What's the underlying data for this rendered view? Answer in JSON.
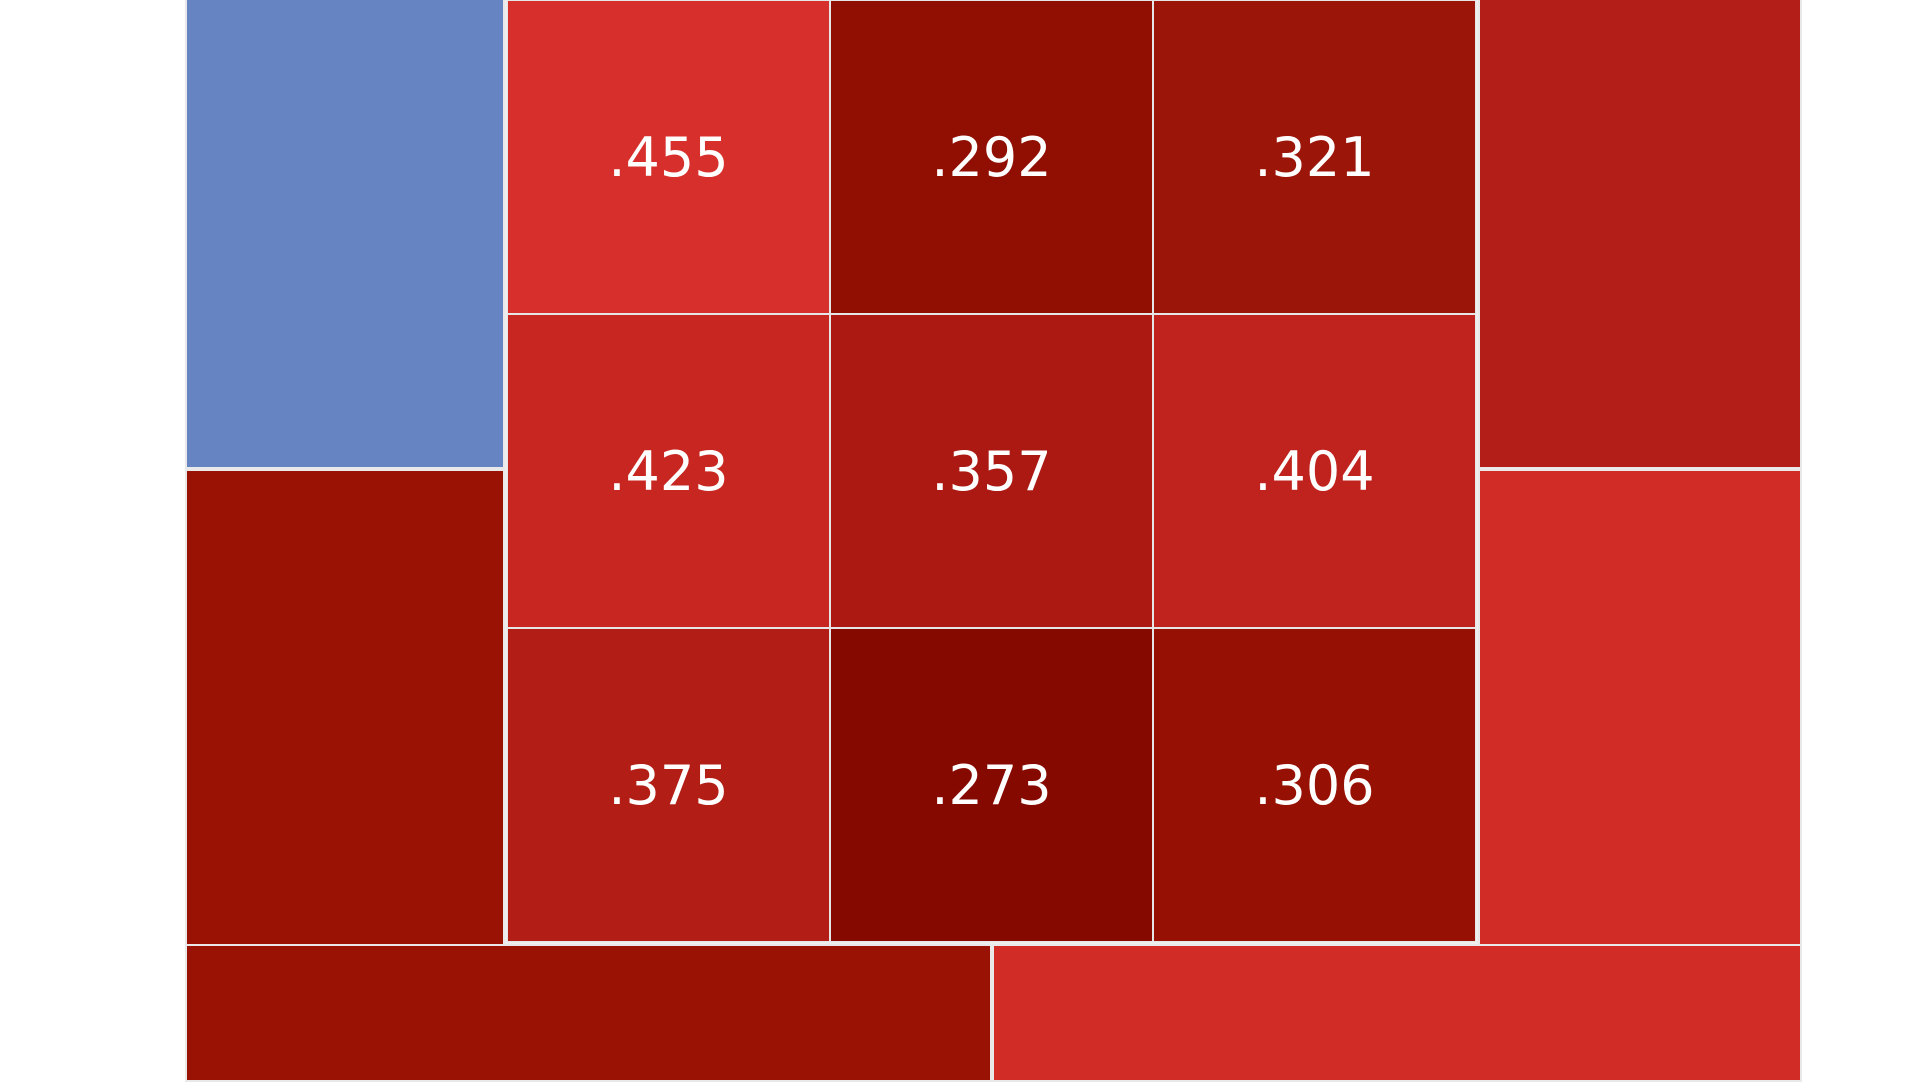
{
  "chart_data": {
    "type": "heatmap",
    "title": "",
    "inner_grid": [
      [
        ".455",
        ".292",
        ".321"
      ],
      [
        ".423",
        ".357",
        ".404"
      ],
      [
        ".375",
        ".273",
        ".306"
      ]
    ],
    "inner_colors": [
      [
        "#d72f2b",
        "#900f02",
        "#9c1509"
      ],
      [
        "#c82620",
        "#ab1912",
        "#c0231e"
      ],
      [
        "#b21e15",
        "#860900",
        "#971004"
      ]
    ],
    "outer_zones": [
      {
        "zone": "top-left",
        "color": "#6684c2"
      },
      {
        "zone": "top-right",
        "color": "#b41e19"
      },
      {
        "zone": "bottom-left",
        "color": "#991203"
      },
      {
        "zone": "bottom-right",
        "color": "#d22c26"
      }
    ]
  }
}
